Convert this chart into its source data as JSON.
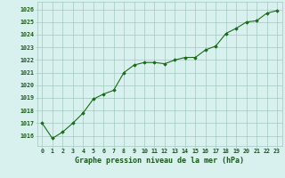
{
  "x": [
    0,
    1,
    2,
    3,
    4,
    5,
    6,
    7,
    8,
    9,
    10,
    11,
    12,
    13,
    14,
    15,
    16,
    17,
    18,
    19,
    20,
    21,
    22,
    23
  ],
  "y": [
    1017.0,
    1015.8,
    1016.3,
    1017.0,
    1017.8,
    1018.9,
    1019.3,
    1019.6,
    1021.0,
    1021.6,
    1021.8,
    1021.8,
    1021.7,
    1022.0,
    1022.2,
    1022.2,
    1022.8,
    1023.1,
    1024.1,
    1024.5,
    1025.0,
    1025.1,
    1025.7,
    1025.9
  ],
  "line_color": "#1a6b1a",
  "marker": "D",
  "marker_size": 1.8,
  "bg_color": "#d8f0ee",
  "grid_color": "#a0c8c0",
  "ylabel_ticks": [
    1016,
    1017,
    1018,
    1019,
    1020,
    1021,
    1022,
    1023,
    1024,
    1025,
    1026
  ],
  "ylim": [
    1015.2,
    1026.6
  ],
  "xlim": [
    -0.5,
    23.5
  ],
  "xlabel": "Graphe pression niveau de la mer (hPa)",
  "xlabel_fontsize": 6.0,
  "title_color": "#1a5a1a",
  "tick_fontsize": 4.8,
  "tick_color": "#1a5a1a",
  "line_width": 0.8
}
